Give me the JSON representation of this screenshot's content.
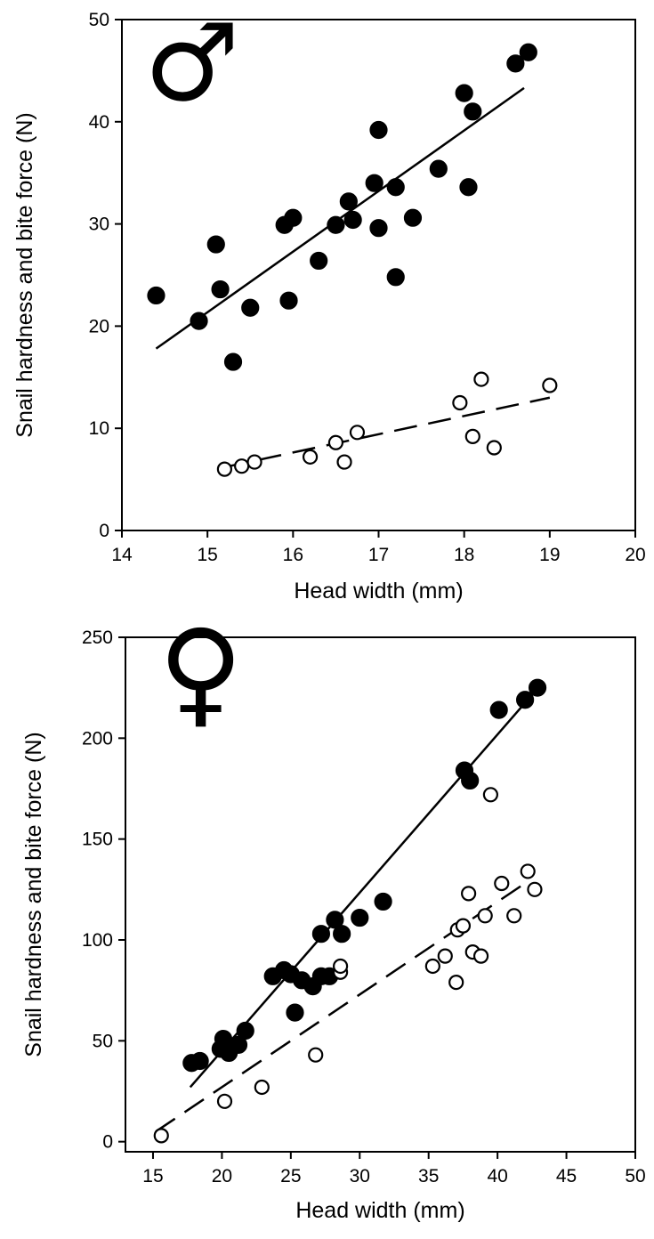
{
  "chart_data": [
    {
      "type": "scatter",
      "panel_symbol": "♂",
      "xlabel": "Head width (mm)",
      "ylabel": "Snail hardness and bite force (N)",
      "xlim": [
        14,
        20
      ],
      "ylim": [
        0,
        50
      ],
      "xticks": [
        "14",
        "15",
        "16",
        "17",
        "18",
        "19",
        "20"
      ],
      "yticks": [
        "0",
        "10",
        "20",
        "30",
        "40",
        "50"
      ],
      "series": [
        {
          "marker": "filled-circle",
          "points": [
            [
              14.4,
              23.0
            ],
            [
              14.9,
              20.5
            ],
            [
              15.1,
              28.0
            ],
            [
              15.15,
              23.6
            ],
            [
              15.3,
              16.5
            ],
            [
              15.5,
              21.8
            ],
            [
              15.9,
              29.9
            ],
            [
              15.95,
              22.5
            ],
            [
              16.0,
              30.6
            ],
            [
              16.3,
              26.4
            ],
            [
              16.5,
              29.9
            ],
            [
              16.65,
              32.2
            ],
            [
              16.7,
              30.4
            ],
            [
              16.95,
              34.0
            ],
            [
              17.0,
              39.2
            ],
            [
              17.0,
              29.6
            ],
            [
              17.2,
              33.6
            ],
            [
              17.2,
              24.8
            ],
            [
              17.4,
              30.6
            ],
            [
              17.7,
              35.4
            ],
            [
              18.0,
              42.8
            ],
            [
              18.05,
              33.6
            ],
            [
              18.1,
              41.0
            ],
            [
              18.6,
              45.7
            ],
            [
              18.75,
              46.8
            ]
          ],
          "fit": {
            "style": "solid",
            "from": [
              14.4,
              17.8
            ],
            "to": [
              18.7,
              43.3
            ]
          }
        },
        {
          "marker": "open-circle",
          "points": [
            [
              15.2,
              6.0
            ],
            [
              15.4,
              6.3
            ],
            [
              15.55,
              6.7
            ],
            [
              16.2,
              7.2
            ],
            [
              16.5,
              8.6
            ],
            [
              16.6,
              6.7
            ],
            [
              16.75,
              9.6
            ],
            [
              17.95,
              12.5
            ],
            [
              18.1,
              9.2
            ],
            [
              18.2,
              14.8
            ],
            [
              18.35,
              8.1
            ],
            [
              19.0,
              14.2
            ]
          ],
          "fit": {
            "style": "dashed",
            "from": [
              15.2,
              6.2
            ],
            "to": [
              19.0,
              13.0
            ]
          }
        }
      ]
    },
    {
      "type": "scatter",
      "panel_symbol": "♀",
      "xlabel": "Head width (mm)",
      "ylabel": "Snail hardness and bite force (N)",
      "xlim": [
        13,
        50
      ],
      "ylim": [
        -5,
        250
      ],
      "xticks": [
        "15",
        "20",
        "25",
        "30",
        "35",
        "40",
        "45",
        "50"
      ],
      "yticks": [
        "0",
        "50",
        "100",
        "150",
        "200",
        "250"
      ],
      "series": [
        {
          "marker": "filled-circle",
          "points": [
            [
              17.8,
              39
            ],
            [
              18.4,
              40
            ],
            [
              19.9,
              46
            ],
            [
              20.1,
              51
            ],
            [
              20.5,
              44
            ],
            [
              21.2,
              48
            ],
            [
              21.7,
              55
            ],
            [
              23.7,
              82
            ],
            [
              24.5,
              85
            ],
            [
              25.0,
              83
            ],
            [
              25.3,
              64
            ],
            [
              25.8,
              80
            ],
            [
              26.6,
              77
            ],
            [
              27.2,
              103
            ],
            [
              27.2,
              82
            ],
            [
              27.8,
              82
            ],
            [
              28.2,
              110
            ],
            [
              28.7,
              103
            ],
            [
              30.0,
              111
            ],
            [
              31.7,
              119
            ],
            [
              37.6,
              184
            ],
            [
              38.0,
              179
            ],
            [
              40.1,
              214
            ],
            [
              42.0,
              219
            ],
            [
              42.9,
              225
            ]
          ],
          "fit": {
            "style": "solid",
            "from": [
              17.7,
              27
            ],
            "to": [
              42.7,
              223
            ]
          }
        },
        {
          "marker": "open-circle",
          "points": [
            [
              15.6,
              3
            ],
            [
              20.2,
              20
            ],
            [
              22.9,
              27
            ],
            [
              26.8,
              43
            ],
            [
              28.6,
              84
            ],
            [
              28.6,
              87
            ],
            [
              35.3,
              87
            ],
            [
              36.2,
              92
            ],
            [
              37.0,
              79
            ],
            [
              37.1,
              105
            ],
            [
              37.5,
              107
            ],
            [
              37.9,
              123
            ],
            [
              38.2,
              94
            ],
            [
              38.8,
              92
            ],
            [
              39.1,
              112
            ],
            [
              39.5,
              172
            ],
            [
              40.3,
              128
            ],
            [
              41.2,
              112
            ],
            [
              42.2,
              134
            ],
            [
              42.7,
              125
            ]
          ],
          "fit": {
            "style": "dashed",
            "from": [
              15.2,
              5
            ],
            "to": [
              42.2,
              129
            ]
          }
        }
      ]
    }
  ]
}
